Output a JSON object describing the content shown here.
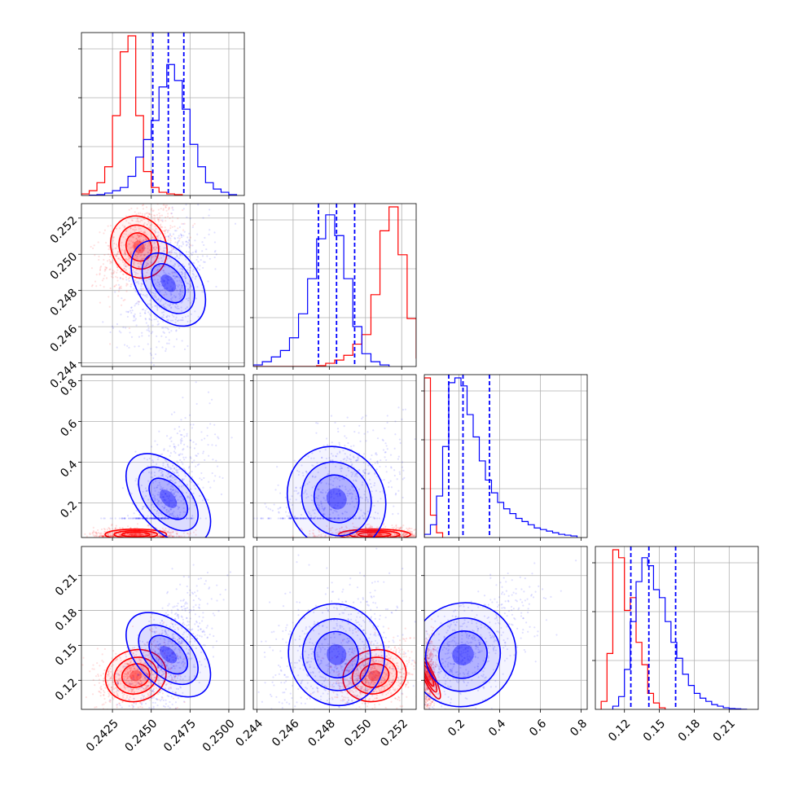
{
  "chart_data": {
    "type": "corner",
    "grid": true,
    "parameters": [
      {
        "range": [
          0.2405,
          0.251
        ],
        "ticks": [
          0.2425,
          0.245,
          0.2475,
          0.25
        ],
        "tick_labels": [
          "0.2425",
          "0.2450",
          "0.2475",
          "0.2500"
        ]
      },
      {
        "range": [
          0.2438,
          0.2528
        ],
        "ticks": [
          0.244,
          0.246,
          0.248,
          0.25,
          0.252
        ],
        "tick_labels": [
          "0.244",
          "0.246",
          "0.248",
          "0.250",
          "0.252"
        ]
      },
      {
        "range": [
          0.03,
          0.83
        ],
        "ticks": [
          0.2,
          0.4,
          0.6,
          0.8
        ],
        "tick_labels": [
          "0.2",
          "0.4",
          "0.6",
          "0.8"
        ]
      },
      {
        "range": [
          0.095,
          0.235
        ],
        "ticks": [
          0.12,
          0.15,
          0.18,
          0.21
        ],
        "tick_labels": [
          "0.12",
          "0.15",
          "0.18",
          "0.21"
        ]
      }
    ],
    "series": [
      {
        "color": "#ff0000",
        "histograms": [
          {
            "edges": [
              0.2405,
              0.241,
              0.2415,
              0.242,
              0.2425,
              0.243,
              0.2435,
              0.244,
              0.2445,
              0.245,
              0.2455,
              0.246,
              0.2465,
              0.247
            ],
            "counts": [
              0.01,
              0.03,
              0.08,
              0.18,
              0.5,
              0.9,
              1.0,
              0.5,
              0.15,
              0.05,
              0.02,
              0.01,
              0.005
            ]
          },
          {
            "edges": [
              0.2438,
              0.2443,
              0.2448,
              0.2453,
              0.2458,
              0.2463,
              0.2468,
              0.2473,
              0.2478,
              0.2483,
              0.2488,
              0.2493,
              0.2498,
              0.2503,
              0.2508,
              0.2513,
              0.2518,
              0.2523,
              0.2528
            ],
            "counts": [
              0,
              0,
              0,
              0,
              0,
              0,
              0,
              0.005,
              0.02,
              0.04,
              0.07,
              0.14,
              0.2,
              0.45,
              0.85,
              1.0,
              0.7,
              0.3,
              0.05
            ]
          },
          {
            "edges": [
              0.03,
              0.06,
              0.09,
              0.12
            ],
            "counts": [
              1.0,
              0.14,
              0.03
            ]
          },
          {
            "edges": [
              0.1,
              0.105,
              0.11,
              0.115,
              0.12,
              0.125,
              0.13,
              0.135,
              0.14,
              0.145,
              0.15,
              0.155
            ],
            "counts": [
              0.05,
              0.35,
              1.0,
              0.95,
              0.62,
              0.7,
              0.42,
              0.28,
              0.1,
              0.04,
              0.01
            ]
          }
        ],
        "scatter": [
          {
            "x": 3,
            "y": 0,
            "mean": [
              0.244,
              0.12435
            ],
            "sd": [
              0.00095,
              0.0105
            ],
            "corr": 0.35
          },
          {
            "x": 3,
            "y": 1,
            "mean": [
              0.2505,
              0.12435
            ],
            "sd": [
              0.00085,
              0.0105
            ],
            "corr": 0.3
          }
        ],
        "pair_means": [
          {
            "row": 1,
            "col": 0,
            "mean": [
              0.2442,
              0.2504
            ],
            "sd": [
              0.0008,
              0.0008
            ],
            "corr": 0.4
          },
          {
            "row": 2,
            "col": 0,
            "mean": [
              0.244,
              0.045
            ],
            "sd": [
              0.0009,
              0.012
            ],
            "corr": 0.0
          },
          {
            "row": 2,
            "col": 1,
            "mean": [
              0.2505,
              0.045
            ],
            "sd": [
              0.0009,
              0.012
            ],
            "corr": 0.0
          },
          {
            "row": 3,
            "col": 0,
            "mean": [
              0.244,
              0.124
            ],
            "sd": [
              0.0009,
              0.01
            ],
            "corr": 0.35
          },
          {
            "row": 3,
            "col": 1,
            "mean": [
              0.2505,
              0.124
            ],
            "sd": [
              0.0008,
              0.01
            ],
            "corr": 0.3
          },
          {
            "row": 3,
            "col": 2,
            "mean": [
              0.05,
              0.124
            ],
            "sd": [
              0.012,
              0.01
            ],
            "corr": 0.1
          }
        ]
      },
      {
        "color": "#0000ff",
        "histograms": [
          {
            "edges": [
              0.241,
              0.2415,
              0.242,
              0.2425,
              0.243,
              0.2435,
              0.244,
              0.2445,
              0.245,
              0.2455,
              0.246,
              0.2465,
              0.247,
              0.2475,
              0.248,
              0.2485,
              0.249,
              0.2495,
              0.25,
              0.2505
            ],
            "counts": [
              0.002,
              0.005,
              0.015,
              0.03,
              0.05,
              0.12,
              0.24,
              0.35,
              0.47,
              0.68,
              0.82,
              0.72,
              0.54,
              0.32,
              0.18,
              0.08,
              0.04,
              0.02,
              0.005
            ]
          },
          {
            "edges": [
              0.2438,
              0.2443,
              0.2448,
              0.2453,
              0.2458,
              0.2463,
              0.2468,
              0.2473,
              0.2478,
              0.2483,
              0.2488,
              0.2493,
              0.2498,
              0.2503,
              0.2508,
              0.2513
            ],
            "counts": [
              0.01,
              0.03,
              0.06,
              0.1,
              0.18,
              0.33,
              0.55,
              0.8,
              0.95,
              0.82,
              0.55,
              0.25,
              0.08,
              0.03,
              0.01
            ]
          },
          {
            "edges": [
              0.03,
              0.06,
              0.09,
              0.12,
              0.15,
              0.18,
              0.21,
              0.24,
              0.27,
              0.3,
              0.33,
              0.36,
              0.39,
              0.42,
              0.45,
              0.48,
              0.51,
              0.54,
              0.57,
              0.6,
              0.63,
              0.66,
              0.69,
              0.72,
              0.75,
              0.78
            ],
            "counts": [
              0.02,
              0.08,
              0.26,
              0.57,
              0.97,
              1.0,
              0.95,
              0.77,
              0.63,
              0.48,
              0.36,
              0.28,
              0.22,
              0.18,
              0.15,
              0.12,
              0.1,
              0.08,
              0.06,
              0.05,
              0.04,
              0.03,
              0.02,
              0.015,
              0.01
            ]
          },
          {
            "edges": [
              0.11,
              0.115,
              0.12,
              0.125,
              0.13,
              0.135,
              0.14,
              0.145,
              0.15,
              0.155,
              0.16,
              0.165,
              0.17,
              0.175,
              0.18,
              0.185,
              0.19,
              0.195,
              0.2,
              0.205,
              0.21,
              0.215,
              0.22,
              0.225
            ],
            "counts": [
              0.02,
              0.08,
              0.25,
              0.55,
              0.8,
              0.95,
              0.9,
              0.75,
              0.7,
              0.55,
              0.42,
              0.32,
              0.22,
              0.15,
              0.1,
              0.07,
              0.05,
              0.03,
              0.02,
              0.01,
              0.005,
              0.003,
              0.001
            ]
          }
        ],
        "quantiles": [
          [
            0.2451,
            0.2461,
            0.2471
          ],
          [
            0.2474,
            0.2484,
            0.2494
          ],
          [
            0.15,
            0.22,
            0.35
          ],
          [
            0.1255,
            0.141,
            0.164
          ]
        ],
        "scatter": [
          {
            "x": 0,
            "y": 1,
            "mean": [
              0.2461,
              0.2484
            ],
            "sd": [
              0.0009,
              0.0012
            ],
            "corr": 0.45
          }
        ],
        "pair_means": [
          {
            "row": 1,
            "col": 0,
            "mean": [
              0.2461,
              0.2484
            ],
            "sd": [
              0.0009,
              0.0012
            ],
            "corr": 0.45
          },
          {
            "row": 2,
            "col": 0,
            "mean": [
              0.2461,
              0.22
            ],
            "sd": [
              0.0009,
              0.12
            ],
            "corr": 0.5
          },
          {
            "row": 2,
            "col": 1,
            "mean": [
              0.2484,
              0.22
            ],
            "sd": [
              0.0012,
              0.12
            ],
            "corr": 0.5
          },
          {
            "row": 3,
            "col": 0,
            "mean": [
              0.2461,
              0.142
            ],
            "sd": [
              0.0009,
              0.02
            ],
            "corr": 0.6
          },
          {
            "row": 3,
            "col": 1,
            "mean": [
              0.2484,
              0.142
            ],
            "sd": [
              0.0012,
              0.02
            ],
            "corr": 0.3
          },
          {
            "row": 3,
            "col": 2,
            "mean": [
              0.22,
              0.142
            ],
            "sd": [
              0.12,
              0.02
            ],
            "corr": 0.7
          }
        ]
      }
    ]
  }
}
